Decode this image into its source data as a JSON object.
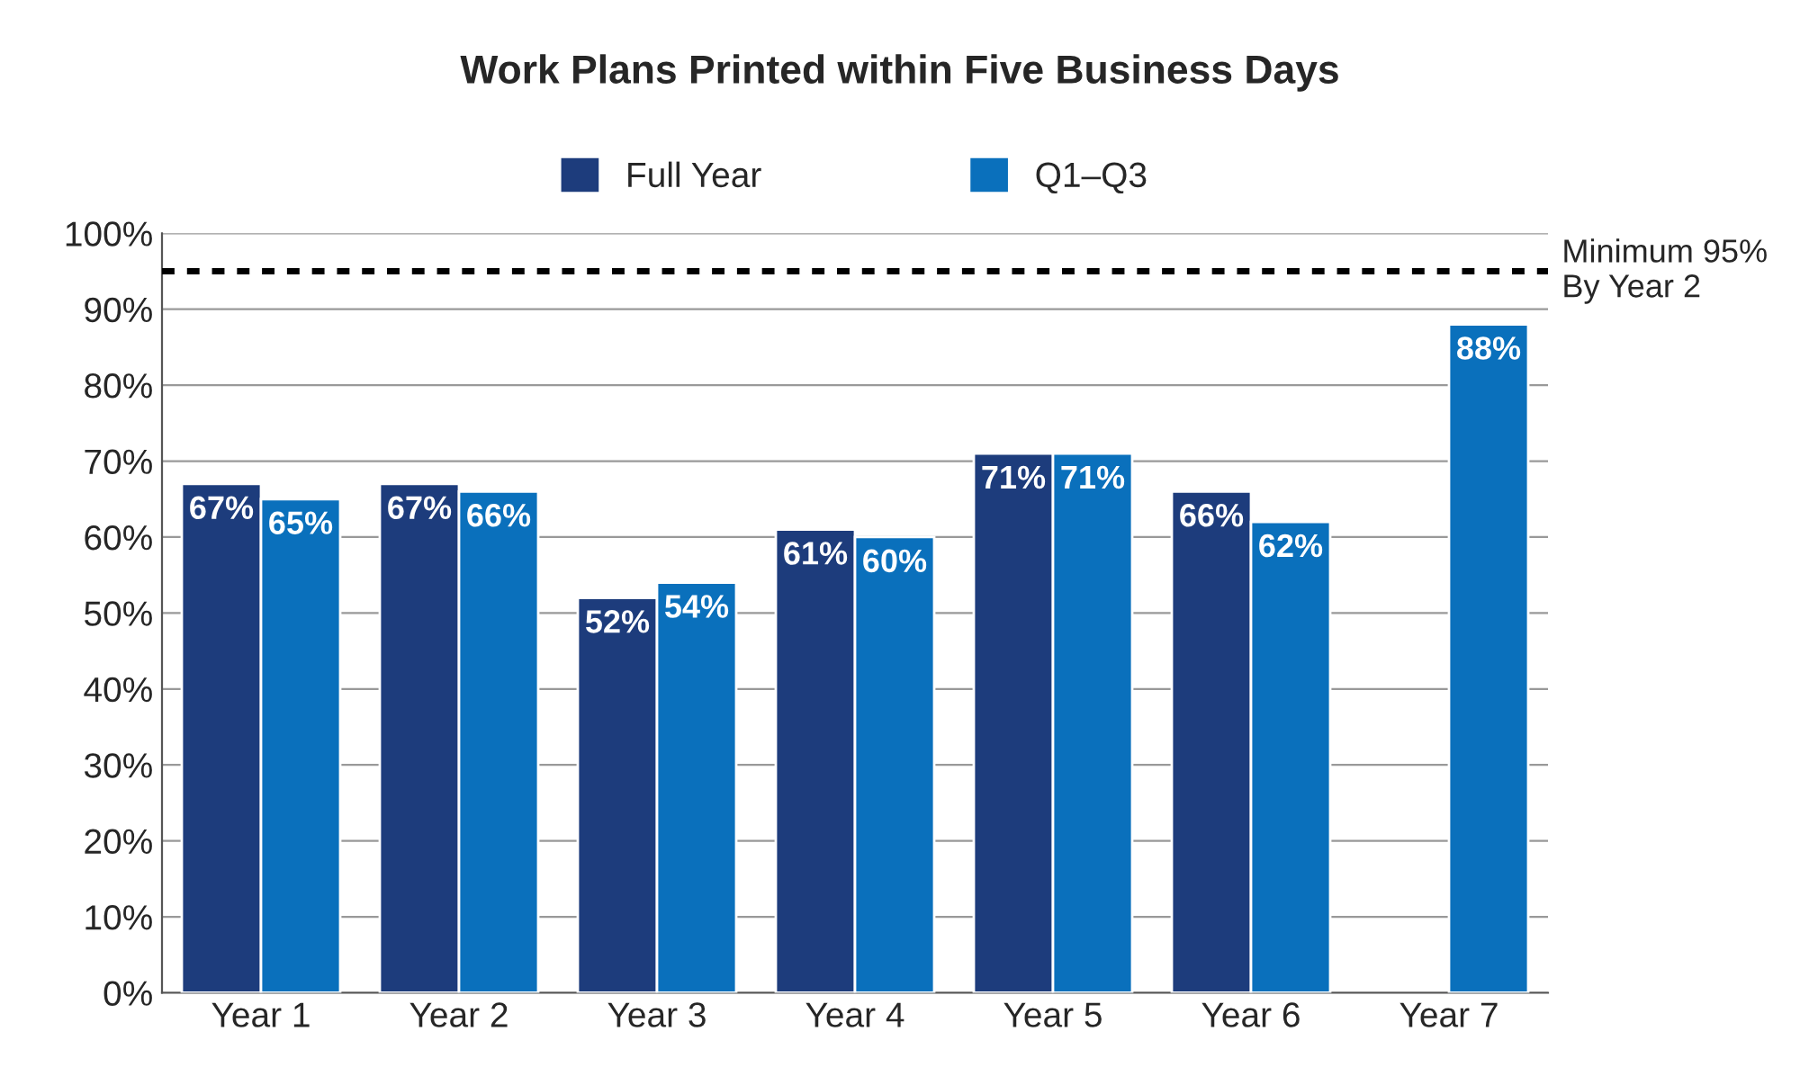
{
  "chart_data": {
    "type": "bar",
    "title": "Work Plans Printed within Five Business Days",
    "categories": [
      "Year 1",
      "Year 2",
      "Year 3",
      "Year 4",
      "Year 5",
      "Year 6",
      "Year 7"
    ],
    "series": [
      {
        "name": "Full Year",
        "color": "#1d3c7c",
        "values": [
          67,
          67,
          52,
          61,
          71,
          66,
          null
        ],
        "value_labels": [
          "67%",
          "67%",
          "52%",
          "61%",
          "71%",
          "66%",
          null
        ]
      },
      {
        "name": "Q1–Q3",
        "color": "#0a70bc",
        "values": [
          65,
          66,
          54,
          60,
          71,
          62,
          88
        ],
        "value_labels": [
          "65%",
          "66%",
          "54%",
          "60%",
          "71%",
          "62%",
          "88%"
        ]
      }
    ],
    "ylim": [
      0,
      100
    ],
    "yticks": [
      {
        "value": 0,
        "label": "0%"
      },
      {
        "value": 10,
        "label": "10%"
      },
      {
        "value": 20,
        "label": "20%"
      },
      {
        "value": 30,
        "label": "30%"
      },
      {
        "value": 40,
        "label": "40%"
      },
      {
        "value": 50,
        "label": "50%"
      },
      {
        "value": 60,
        "label": "60%"
      },
      {
        "value": 70,
        "label": "70%"
      },
      {
        "value": 80,
        "label": "80%"
      },
      {
        "value": 90,
        "label": "90%"
      },
      {
        "value": 100,
        "label": "100%"
      }
    ],
    "ref_lines": [
      {
        "axis": "y",
        "value": 95,
        "label": "Minimum 95%\nBy Year 2",
        "color": "#000000",
        "line_style": "dotted"
      }
    ],
    "grid": "y",
    "legend": "top"
  }
}
